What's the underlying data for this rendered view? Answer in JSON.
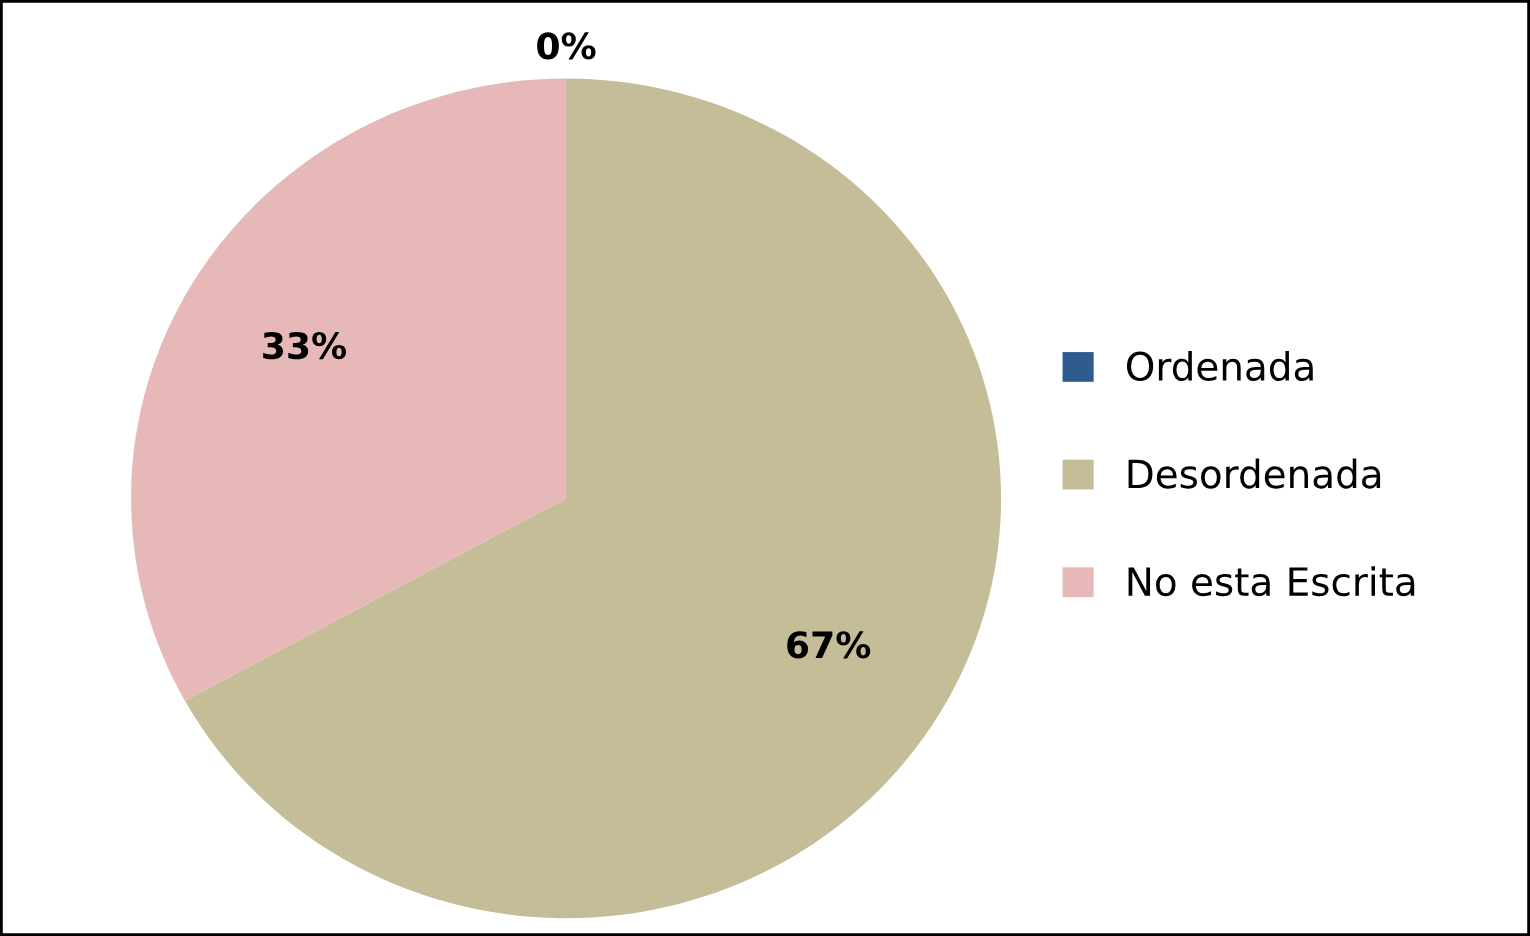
{
  "chart_data": {
    "type": "pie",
    "categories": [
      "Ordenada",
      "Desordenada",
      "No esta Escrita"
    ],
    "values": [
      0,
      67,
      33
    ],
    "colors": [
      "#2e5c8f",
      "#c4bd97",
      "#e6b9b8"
    ],
    "value_labels": [
      "0%",
      "67%",
      "33%"
    ],
    "legend": "right"
  }
}
